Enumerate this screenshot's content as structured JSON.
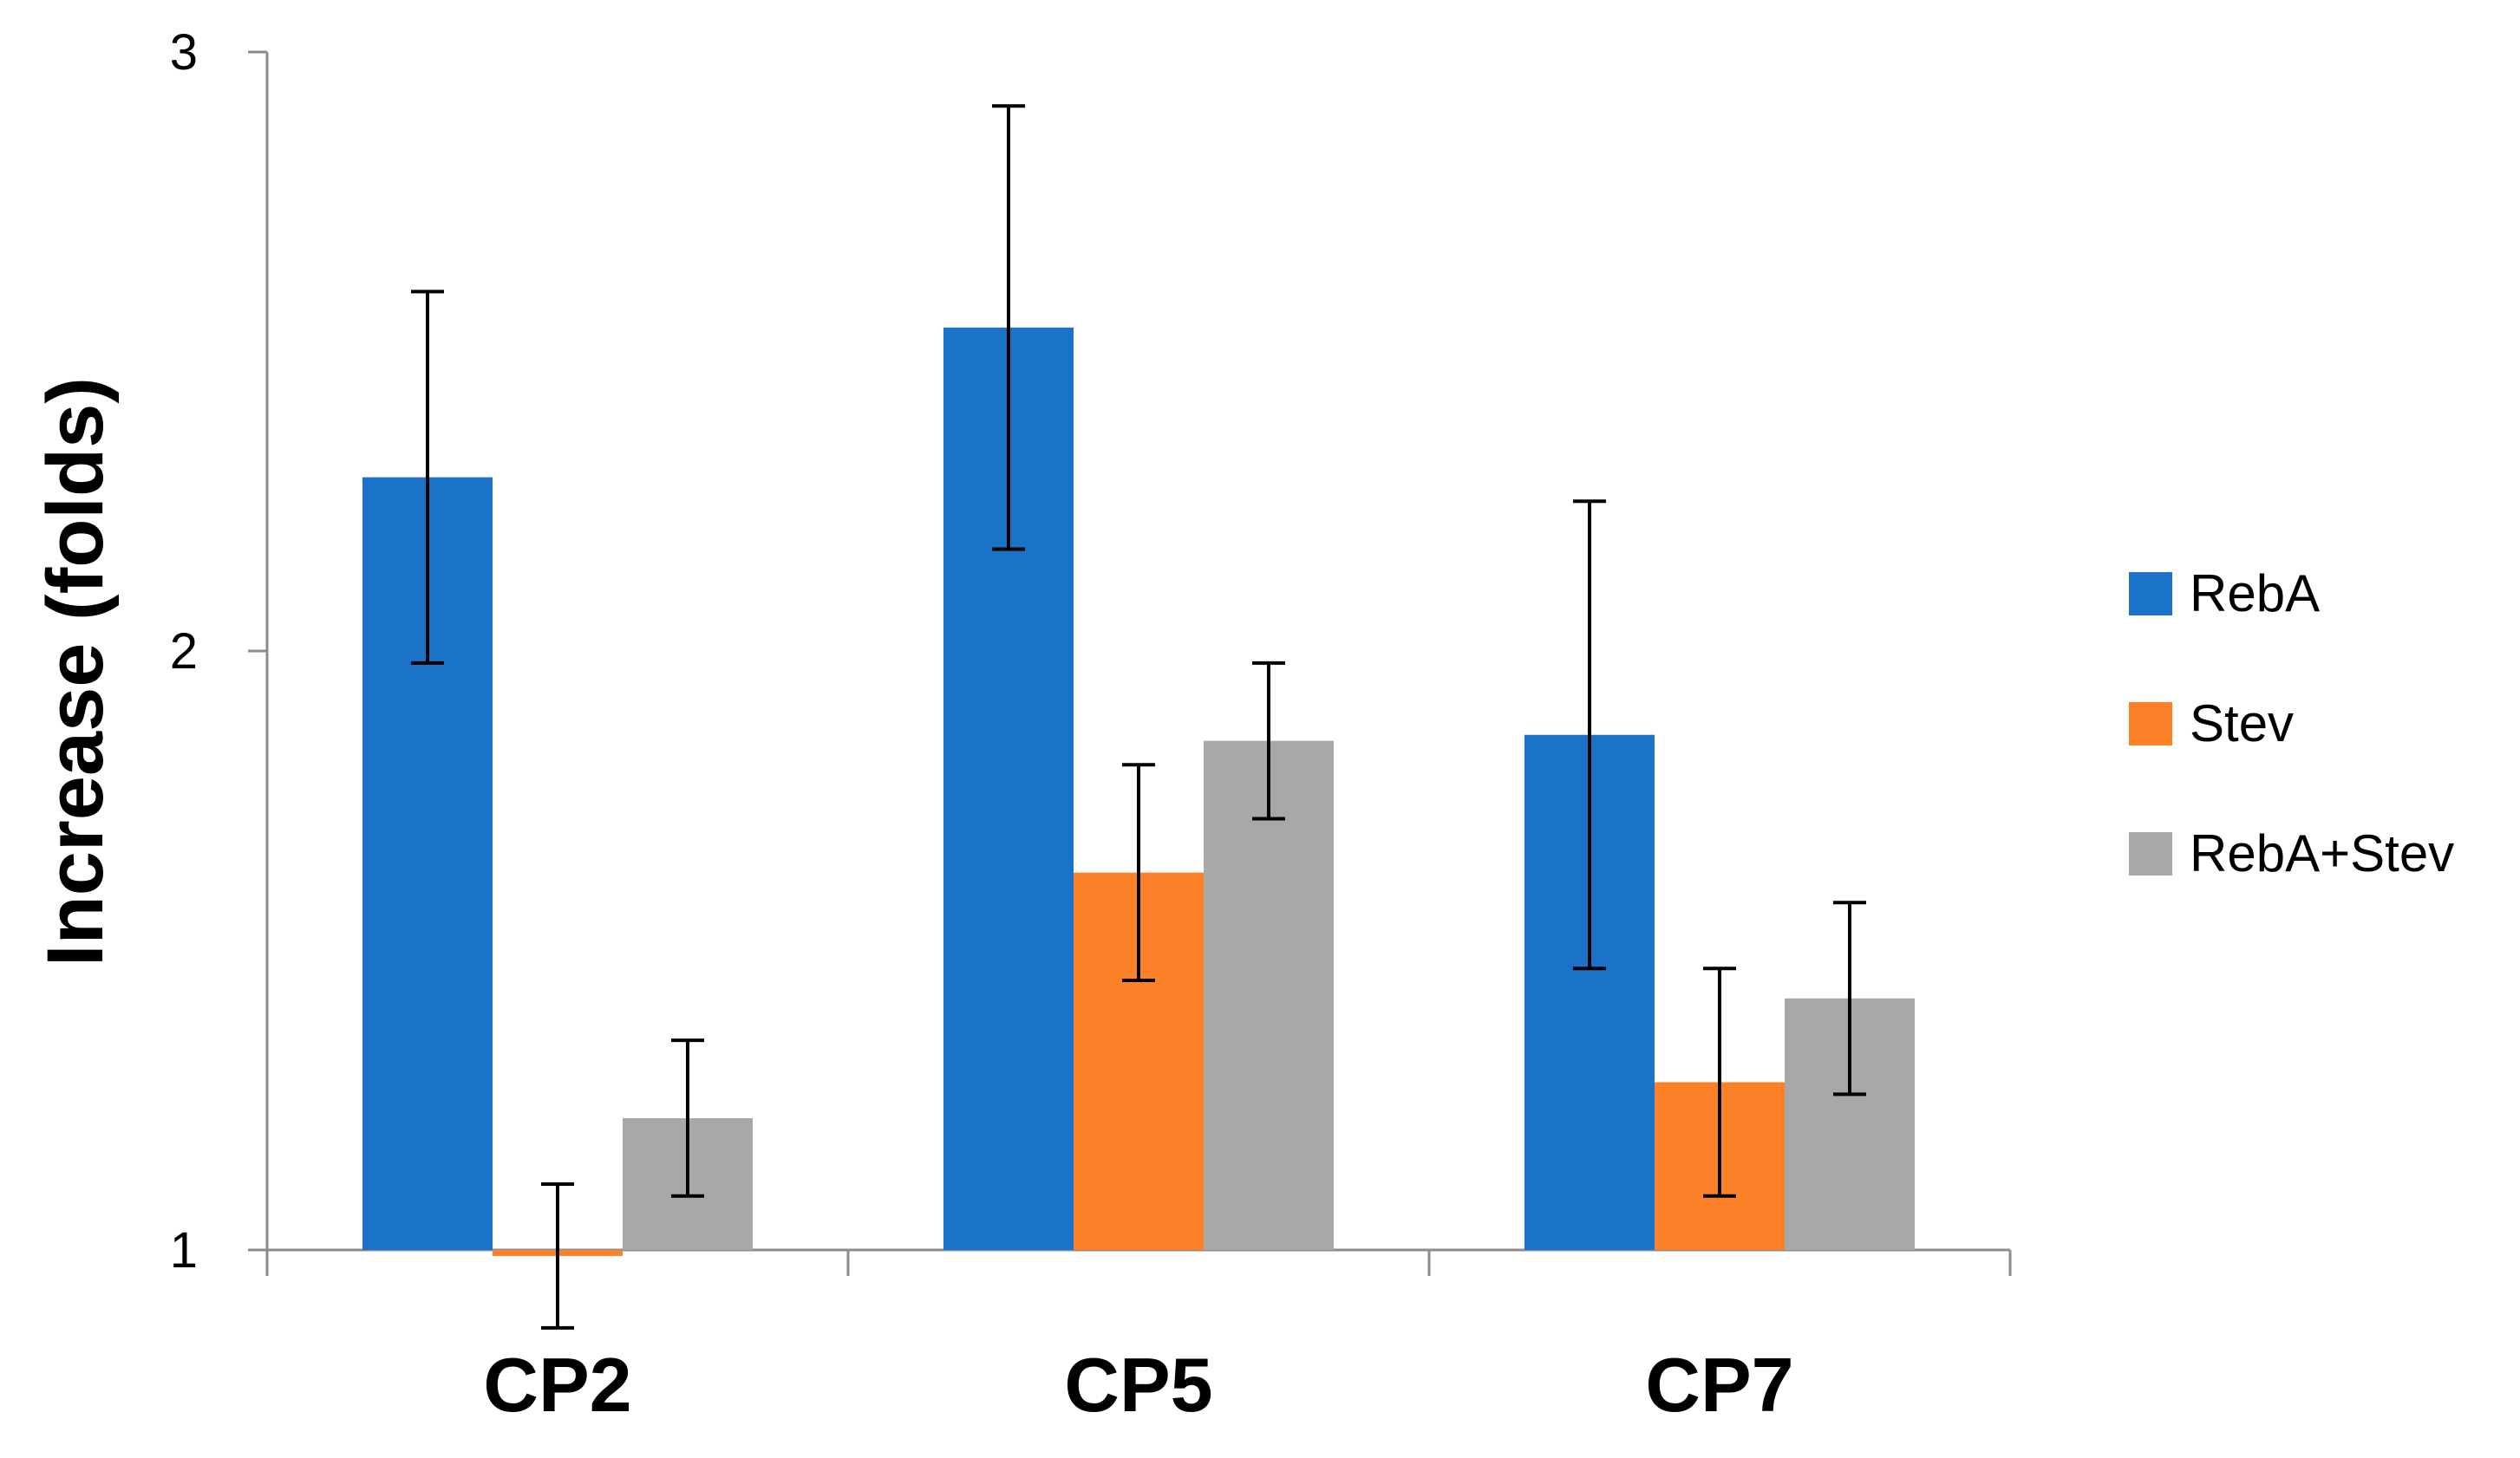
{
  "chart_data": {
    "type": "bar",
    "title": "",
    "xlabel": "",
    "ylabel": "Increase (folds)",
    "ylim": [
      1,
      3
    ],
    "yticks": [
      1,
      2,
      3
    ],
    "grid": false,
    "legend_position": "right",
    "categories": [
      "CP2",
      "CP5",
      "CP7"
    ],
    "series": [
      {
        "name": "RebA",
        "color": "#1a73c9",
        "values": [
          2.29,
          2.54,
          1.86
        ],
        "errors": [
          0.31,
          0.37,
          0.39
        ]
      },
      {
        "name": "Stev",
        "color": "#fd8128",
        "values": [
          0.99,
          1.63,
          1.28
        ],
        "errors": [
          0.12,
          0.18,
          0.19
        ]
      },
      {
        "name": "RebA+Stev",
        "color": "#a8a8a8",
        "values": [
          1.22,
          1.85,
          1.42
        ],
        "errors": [
          0.13,
          0.13,
          0.16
        ]
      }
    ]
  }
}
